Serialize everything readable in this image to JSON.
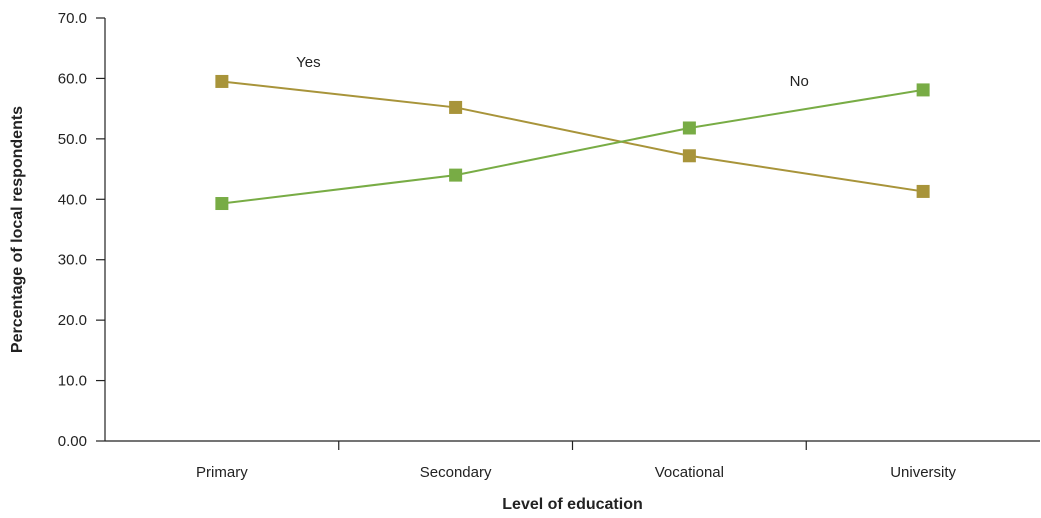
{
  "chart_data": {
    "type": "line",
    "categories": [
      "Primary",
      "Secondary",
      "Vocational",
      "University"
    ],
    "series": [
      {
        "name": "Yes",
        "values": [
          59.5,
          55.2,
          47.2,
          41.3
        ],
        "color": "#A8943A"
      },
      {
        "name": "No",
        "values": [
          39.3,
          44.0,
          51.8,
          58.1
        ],
        "color": "#78AC45"
      }
    ],
    "xlabel": "Level of education",
    "ylabel": "Percentage of local respondents",
    "ylim": [
      0,
      70
    ],
    "yticks": [
      "0.00",
      "10.0",
      "20.0",
      "30.0",
      "40.0",
      "50.0",
      "60.0",
      "70.0"
    ],
    "grid": false,
    "legend": "inline labels"
  }
}
